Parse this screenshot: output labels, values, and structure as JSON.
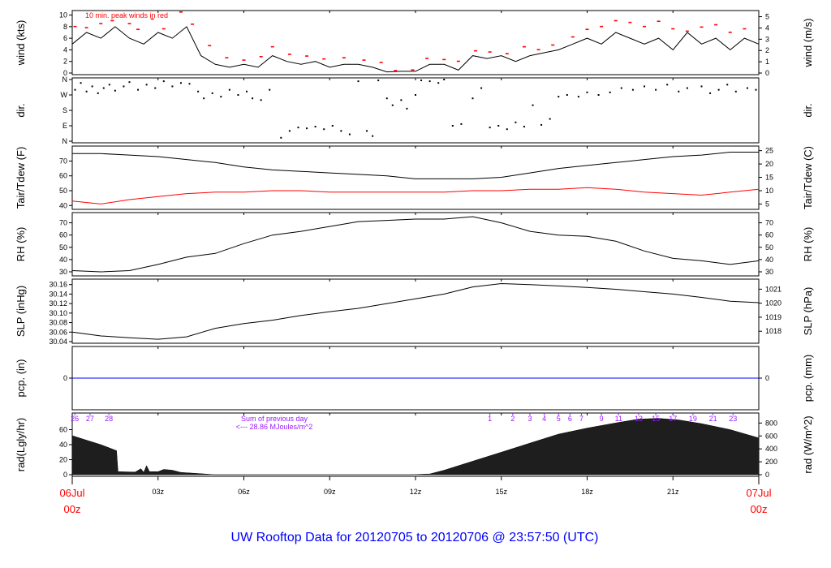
{
  "title": "UW Rooftop Data for 20120705  to  20120706 @ 23:57:50  (UTC)",
  "colors": {
    "line": "#000000",
    "dew": "#ff0000",
    "peak": "#ff0000",
    "pcp": "#0000ff",
    "hourlabel": "#9a1aff",
    "title": "#0000ff",
    "date": "#ff0000"
  },
  "xaxis": {
    "range_hours": [
      0,
      24
    ],
    "ticks": [
      {
        "h": 3,
        "label": "03z"
      },
      {
        "h": 6,
        "label": "06z"
      },
      {
        "h": 9,
        "label": "09z"
      },
      {
        "h": 12,
        "label": "12z"
      },
      {
        "h": 15,
        "label": "15z"
      },
      {
        "h": 18,
        "label": "18z"
      },
      {
        "h": 21,
        "label": "21z"
      }
    ],
    "start_date": "06Jul",
    "start_time": "00z",
    "end_date": "07Jul",
    "end_time": "00z"
  },
  "chart_data": [
    {
      "type": "line",
      "name": "wind",
      "ylabel": "wind (kts)",
      "ylabel_right": "wind (m/s)",
      "ylim": [
        0,
        10.5
      ],
      "yticks": [
        0,
        2,
        4,
        6,
        8,
        10
      ],
      "yticks_right": [
        {
          "v": 0,
          "kts": 0
        },
        {
          "v": 1,
          "kts": 1.944
        },
        {
          "v": 2,
          "kts": 3.888
        },
        {
          "v": 3,
          "kts": 5.832
        },
        {
          "v": 4,
          "kts": 7.776
        },
        {
          "v": 5,
          "kts": 9.72
        }
      ],
      "annotation": "10 min. peak winds in red",
      "step_hours": 0.5,
      "values": [
        5,
        7,
        6,
        8,
        6,
        5,
        7,
        6,
        8,
        3,
        1.5,
        1,
        1.5,
        1,
        3,
        2,
        1.5,
        2,
        1,
        1.5,
        1.5,
        1,
        0.2,
        0.3,
        0.3,
        1.5,
        1.5,
        0.5,
        3,
        2.5,
        3,
        2,
        3,
        3.5,
        4,
        5,
        6,
        5,
        7,
        6,
        5,
        6,
        4,
        7,
        5,
        6,
        4,
        6,
        5
      ],
      "peaks": [
        [
          0.1,
          8
        ],
        [
          0.5,
          7.8
        ],
        [
          1.0,
          8.5
        ],
        [
          1.4,
          9
        ],
        [
          2.0,
          8.5
        ],
        [
          2.3,
          7.5
        ],
        [
          2.8,
          9.3
        ],
        [
          3.2,
          7.6
        ],
        [
          3.8,
          10.5
        ],
        [
          4.2,
          8.4
        ],
        [
          4.8,
          4.7
        ],
        [
          5.4,
          2.6
        ],
        [
          6.0,
          2.2
        ],
        [
          6.6,
          2.8
        ],
        [
          7.0,
          4.5
        ],
        [
          7.6,
          3.2
        ],
        [
          8.2,
          2.9
        ],
        [
          8.8,
          2.4
        ],
        [
          9.5,
          2.6
        ],
        [
          10.2,
          2.2
        ],
        [
          10.8,
          1.8
        ],
        [
          11.3,
          0.4
        ],
        [
          11.9,
          0.5
        ],
        [
          12.4,
          2.5
        ],
        [
          13.0,
          2.3
        ],
        [
          13.5,
          2.0
        ],
        [
          14.1,
          3.8
        ],
        [
          14.6,
          3.6
        ],
        [
          15.2,
          3.3
        ],
        [
          15.8,
          4.5
        ],
        [
          16.3,
          4.0
        ],
        [
          16.8,
          4.8
        ],
        [
          17.5,
          6.2
        ],
        [
          18.0,
          7.5
        ],
        [
          18.5,
          8.0
        ],
        [
          19.0,
          9.0
        ],
        [
          19.5,
          8.7
        ],
        [
          20.0,
          8.0
        ],
        [
          20.5,
          8.9
        ],
        [
          21.0,
          7.6
        ],
        [
          21.5,
          7.2
        ],
        [
          22.0,
          7.9
        ],
        [
          22.5,
          8.3
        ],
        [
          23.0,
          7.0
        ],
        [
          23.5,
          7.6
        ]
      ]
    },
    {
      "type": "scatter",
      "name": "dir",
      "ylabel": "dir.",
      "ylabel_right": "dir.",
      "ylim": [
        0,
        360
      ],
      "yticks": [
        {
          "v": 360,
          "label": "N"
        },
        {
          "v": 270,
          "label": "W"
        },
        {
          "v": 180,
          "label": "S"
        },
        {
          "v": 90,
          "label": "E"
        },
        {
          "v": 0,
          "label": "N"
        }
      ],
      "points": [
        [
          0.1,
          300
        ],
        [
          0.3,
          340
        ],
        [
          0.5,
          290
        ],
        [
          0.7,
          320
        ],
        [
          0.9,
          280
        ],
        [
          1.1,
          310
        ],
        [
          1.3,
          330
        ],
        [
          1.5,
          295
        ],
        [
          1.8,
          320
        ],
        [
          2.0,
          345
        ],
        [
          2.3,
          300
        ],
        [
          2.6,
          330
        ],
        [
          2.9,
          310
        ],
        [
          3.2,
          350
        ],
        [
          3.5,
          320
        ],
        [
          3.8,
          340
        ],
        [
          4.1,
          335
        ],
        [
          4.4,
          290
        ],
        [
          4.6,
          250
        ],
        [
          4.9,
          280
        ],
        [
          5.2,
          260
        ],
        [
          5.5,
          300
        ],
        [
          5.8,
          270
        ],
        [
          6.1,
          290
        ],
        [
          6.3,
          250
        ],
        [
          6.6,
          240
        ],
        [
          6.9,
          300
        ],
        [
          7.3,
          20
        ],
        [
          7.6,
          60
        ],
        [
          7.9,
          80
        ],
        [
          8.2,
          75
        ],
        [
          8.5,
          85
        ],
        [
          8.8,
          70
        ],
        [
          9.1,
          90
        ],
        [
          9.4,
          60
        ],
        [
          9.7,
          40
        ],
        [
          10.0,
          350
        ],
        [
          10.3,
          60
        ],
        [
          10.5,
          30
        ],
        [
          10.7,
          355
        ],
        [
          11.0,
          250
        ],
        [
          11.2,
          210
        ],
        [
          11.5,
          240
        ],
        [
          11.7,
          190
        ],
        [
          12.0,
          270
        ],
        [
          12.2,
          355
        ],
        [
          12.5,
          350
        ],
        [
          12.8,
          340
        ],
        [
          13.0,
          360
        ],
        [
          13.3,
          90
        ],
        [
          13.6,
          100
        ],
        [
          14.0,
          250
        ],
        [
          14.3,
          310
        ],
        [
          14.6,
          80
        ],
        [
          14.9,
          90
        ],
        [
          15.2,
          70
        ],
        [
          15.5,
          110
        ],
        [
          15.8,
          85
        ],
        [
          16.1,
          210
        ],
        [
          16.4,
          95
        ],
        [
          16.7,
          130
        ],
        [
          17.0,
          260
        ],
        [
          17.3,
          270
        ],
        [
          17.7,
          260
        ],
        [
          18.0,
          285
        ],
        [
          18.4,
          270
        ],
        [
          18.8,
          285
        ],
        [
          19.2,
          310
        ],
        [
          19.6,
          300
        ],
        [
          20.0,
          320
        ],
        [
          20.4,
          300
        ],
        [
          20.8,
          330
        ],
        [
          21.2,
          290
        ],
        [
          21.5,
          310
        ],
        [
          22.0,
          320
        ],
        [
          22.3,
          280
        ],
        [
          22.6,
          300
        ],
        [
          22.9,
          330
        ],
        [
          23.2,
          290
        ],
        [
          23.6,
          310
        ],
        [
          23.9,
          300
        ]
      ]
    },
    {
      "type": "line",
      "name": "temp",
      "ylabel": "Tair/Tdew (F)",
      "ylabel_right": "Tair/Tdew (C)",
      "ylim": [
        38.5,
        79
      ],
      "yticks": [
        40,
        50,
        60,
        70
      ],
      "yticks_right": [
        {
          "v": 5,
          "f": 41
        },
        {
          "v": 10,
          "f": 50
        },
        {
          "v": 15,
          "f": 59
        },
        {
          "v": 20,
          "f": 68
        },
        {
          "v": 25,
          "f": 77
        }
      ],
      "step_hours": 1,
      "series": [
        {
          "name": "Tair",
          "values": [
            75,
            75,
            74,
            73,
            71,
            69,
            66,
            64,
            63,
            62,
            61,
            60,
            58,
            58,
            58,
            59,
            62,
            65,
            67,
            69,
            71,
            73,
            74,
            76,
            76
          ]
        },
        {
          "name": "Tdew",
          "values": [
            43,
            41,
            44,
            46,
            48,
            49,
            49,
            50,
            50,
            49,
            49,
            49,
            49,
            49,
            50,
            50,
            51,
            51,
            52,
            51,
            49,
            48,
            47,
            49,
            51
          ]
        }
      ]
    },
    {
      "type": "line",
      "name": "rh",
      "ylabel": "RH (%)",
      "ylabel_right": "RH (%)",
      "ylim": [
        28,
        77
      ],
      "yticks": [
        30,
        40,
        50,
        60,
        70
      ],
      "yticks_right": [
        30,
        40,
        50,
        60,
        70
      ],
      "step_hours": 1,
      "values": [
        31,
        30,
        31,
        36,
        42,
        45,
        53,
        60,
        63,
        67,
        71,
        72,
        73,
        73,
        75,
        70,
        63,
        60,
        59,
        55,
        47,
        41,
        39,
        36,
        39
      ]
    },
    {
      "type": "line",
      "name": "slp",
      "ylabel": "SLP (inHg)",
      "ylabel_right": "SLP (hPa)",
      "ylim": [
        30.04,
        30.168
      ],
      "yticks": [
        30.04,
        30.06,
        30.08,
        30.1,
        30.12,
        30.14,
        30.16
      ],
      "yticks_right": [
        {
          "v": 1018,
          "inhg": 30.0618
        },
        {
          "v": 1019,
          "inhg": 30.0913
        },
        {
          "v": 1020,
          "inhg": 30.1208
        },
        {
          "v": 1021,
          "inhg": 30.1503
        }
      ],
      "step_hours": 1,
      "values": [
        30.06,
        30.052,
        30.048,
        30.045,
        30.05,
        30.068,
        30.078,
        30.085,
        30.095,
        30.103,
        30.11,
        30.12,
        30.13,
        30.14,
        30.155,
        30.162,
        30.16,
        30.157,
        30.154,
        30.15,
        30.145,
        30.14,
        30.133,
        30.125,
        30.122
      ]
    },
    {
      "type": "line",
      "name": "pcp",
      "ylabel": "pcp. (in)",
      "ylabel_right": "pcp. (mm)",
      "yticks": [
        0
      ],
      "yticks_right": [
        0
      ],
      "values": [
        0,
        0
      ]
    },
    {
      "type": "area",
      "name": "rad",
      "ylabel": "rad(Lgly/hr)",
      "ylabel_right": "rad (W/m^2)",
      "ylim": [
        0,
        80
      ],
      "yticks": [
        0,
        20,
        40,
        60
      ],
      "yticks_right": [
        {
          "v": 0,
          "l": 0
        },
        {
          "v": 200,
          "l": 17.2
        },
        {
          "v": 400,
          "l": 34.4
        },
        {
          "v": 600,
          "l": 51.6
        },
        {
          "v": 800,
          "l": 68.8
        }
      ],
      "points": [
        [
          0,
          52
        ],
        [
          0.5,
          46
        ],
        [
          1.0,
          40
        ],
        [
          1.55,
          32
        ],
        [
          1.6,
          4
        ],
        [
          2.2,
          3.5
        ],
        [
          2.4,
          8
        ],
        [
          2.5,
          3
        ],
        [
          2.6,
          12
        ],
        [
          2.7,
          4
        ],
        [
          3.0,
          4
        ],
        [
          3.2,
          7
        ],
        [
          3.5,
          6
        ],
        [
          3.8,
          3
        ],
        [
          4.2,
          2
        ],
        [
          5.0,
          0
        ],
        [
          11.8,
          0
        ],
        [
          12.5,
          1
        ],
        [
          13.0,
          6
        ],
        [
          14.0,
          18
        ],
        [
          15.0,
          30
        ],
        [
          16.0,
          42
        ],
        [
          17.0,
          54
        ],
        [
          18.0,
          62
        ],
        [
          19.0,
          69
        ],
        [
          19.8,
          74
        ],
        [
          20.5,
          75
        ],
        [
          21.2,
          73
        ],
        [
          22.0,
          68
        ],
        [
          23.0,
          60
        ],
        [
          24.0,
          49
        ]
      ],
      "hour_labels": [
        {
          "h": 0.09,
          "label": "26"
        },
        {
          "h": 0.62,
          "label": "27"
        },
        {
          "h": 1.28,
          "label": "28"
        },
        {
          "h": 14.6,
          "label": "1"
        },
        {
          "h": 15.4,
          "label": "2"
        },
        {
          "h": 16.0,
          "label": "3"
        },
        {
          "h": 16.5,
          "label": "4"
        },
        {
          "h": 17.0,
          "label": "5"
        },
        {
          "h": 17.4,
          "label": "6"
        },
        {
          "h": 17.8,
          "label": "7"
        },
        {
          "h": 18.5,
          "label": "9"
        },
        {
          "h": 19.1,
          "label": "11"
        },
        {
          "h": 19.8,
          "label": "13"
        },
        {
          "h": 20.4,
          "label": "15"
        },
        {
          "h": 21.0,
          "label": "17"
        },
        {
          "h": 21.7,
          "label": "19"
        },
        {
          "h": 22.4,
          "label": "21"
        },
        {
          "h": 23.1,
          "label": "23"
        }
      ],
      "note_line1": "Sum of previous day",
      "note_line2": "<--- 28.86 MJoules/m^2"
    }
  ]
}
